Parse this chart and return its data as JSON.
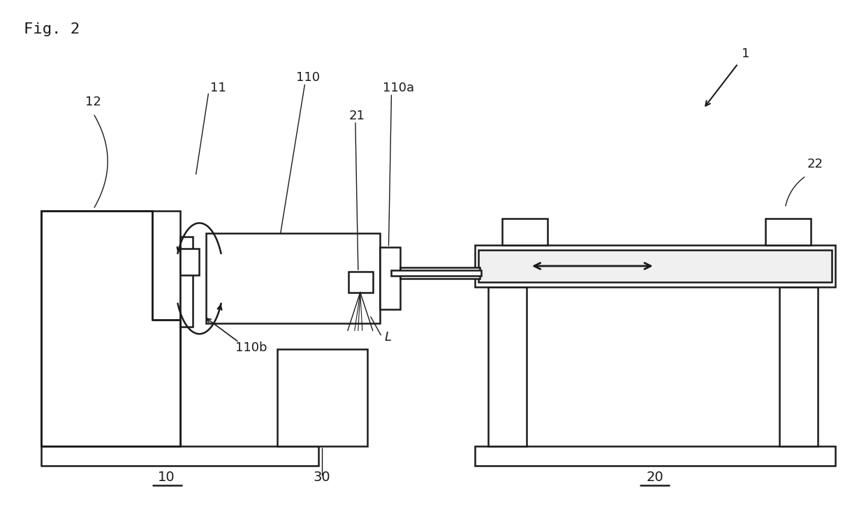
{
  "bg_color": "#ffffff",
  "line_color": "#1a1a1a",
  "fig_width": 12.4,
  "fig_height": 7.49,
  "labels": {
    "fig": "Fig. 2",
    "label_1": "1",
    "label_10": "10",
    "label_11": "11",
    "label_12": "12",
    "label_20": "20",
    "label_21": "21",
    "label_22": "22",
    "label_30": "30",
    "label_110": "110",
    "label_110a": "110a",
    "label_110b": "110b",
    "label_L": "L"
  }
}
